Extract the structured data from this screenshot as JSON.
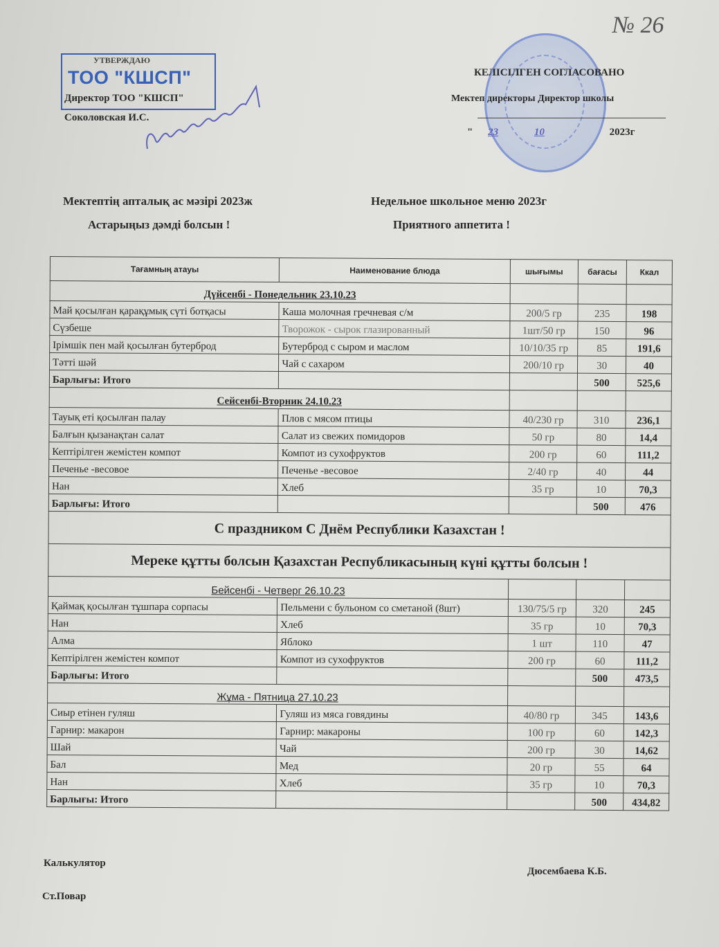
{
  "stamp": {
    "org": "ТОО \"КШСП\"",
    "approved": "УТВЕРЖДАЮ",
    "director": "Директор ТОО \"КШСП\"",
    "name": "Соколовская И.С."
  },
  "doc_number": "№ 26",
  "agreed": {
    "title": "КЕЛІСІЛГЕН СОГЛАСОВАНО",
    "role": "Мектеп директоры Директор школы",
    "date_quote": "\"",
    "date_day": "23",
    "date_month": "10",
    "year": "2023г"
  },
  "headings": {
    "kz_title": "Мектептің апталық ас мәзірі  2023ж",
    "ru_title": "Недельное школьное меню   2023г",
    "kz_wish": "Астарыңыз дәмді болсын !",
    "ru_wish": "Приятного аппетита !"
  },
  "table": {
    "columns": [
      "Тағамның атауы",
      "Наименование блюда",
      "шығымы",
      "бағасы",
      "Ккал"
    ],
    "days": [
      {
        "name": "Дүйсенбі - Понедельник  23.10.23",
        "items": [
          [
            "Май қосылған қарақұмық сүті ботқасы",
            "Каша молочная гречневая с/м",
            "200/5 гр",
            "235",
            "198"
          ],
          [
            "Сүзбеше",
            "Творожок -  сырок глазированный",
            "1шт/50 гр",
            "150",
            "96"
          ],
          [
            "Ірімшік пен май қосылған бутерброд",
            "Бутерброд с сыром и маслом",
            "10/10/35 гр",
            "85",
            "191,6"
          ],
          [
            "Тәтті шәй",
            "Чай с сахаром",
            "200/10 гр",
            "30",
            "40"
          ]
        ],
        "total": [
          "Барлығы: Итого",
          "500",
          "525,6"
        ]
      },
      {
        "name": "Сейсенбі-Вторник  24.10.23",
        "items": [
          [
            "Тауық еті қосылған палау",
            "Плов с мясом птицы",
            "40/230 гр",
            "310",
            "236,1"
          ],
          [
            "Балғын қызанақтан салат",
            "Салат из свежих помидоров",
            "50 гр",
            "80",
            "14,4"
          ],
          [
            "Кептірілген жемістен компот",
            "Компот из сухофруктов",
            "200 гр",
            "60",
            "111,2"
          ],
          [
            "Печенье -весовое",
            "Печенье -весовое",
            "2/40 гр",
            "40",
            "44"
          ],
          [
            "Нан",
            "Хлеб",
            "35 гр",
            "10",
            "70,3"
          ]
        ],
        "total": [
          "Барлығы: Итого",
          "500",
          "476"
        ]
      },
      {
        "name": "Бейсенбі - Четверг  26.10.23",
        "items": [
          [
            "Қаймақ  қосылған  тұшпара сорпасы",
            "Пельмени с бульоном со сметаной  (8шт)",
            "130/75/5 гр",
            "320",
            "245"
          ],
          [
            "Нан",
            "Хлеб",
            "35 гр",
            "10",
            "70,3"
          ],
          [
            "Алма",
            "Яблоко",
            "1 шт",
            "110",
            "47"
          ],
          [
            "Кептірілген жемістен компот",
            "Компот из сухофруктов",
            "200 гр",
            "60",
            "111,2"
          ]
        ],
        "total": [
          "Барлығы: Итого",
          "500",
          "473,5"
        ]
      },
      {
        "name": "Жұма - Пятница   27.10.23",
        "items": [
          [
            "Сиыр етінен гуляш",
            "Гуляш из мяса говядины",
            "40/80 гр",
            "345",
            "143,6"
          ],
          [
            "Гарнир: макарон",
            "Гарнир: макароны",
            "100 гр",
            "60",
            "142,3"
          ],
          [
            "Шай",
            "Чай",
            "200 гр",
            "30",
            "14,62"
          ],
          [
            "Бал",
            "Мед",
            "20 гр",
            "55",
            "64"
          ],
          [
            "Нан",
            "Хлеб",
            "35 гр",
            "10",
            "70,3"
          ]
        ],
        "total": [
          "Барлығы: Итого",
          "500",
          "434,82"
        ]
      }
    ],
    "banners": [
      "С праздником С Днём Республики Казахстан !",
      "Мереке құтты болсын Қазахстан Республикасының күні құтты болсын !"
    ]
  },
  "footer": {
    "calculator": "Калькулятор",
    "chef": "Ст.Повар",
    "signer": "Дюсембаева К.Б."
  },
  "colors": {
    "stamp_blue": "#3760b8",
    "paper": "#e0e0dc",
    "ink": "#2a2a2a"
  }
}
